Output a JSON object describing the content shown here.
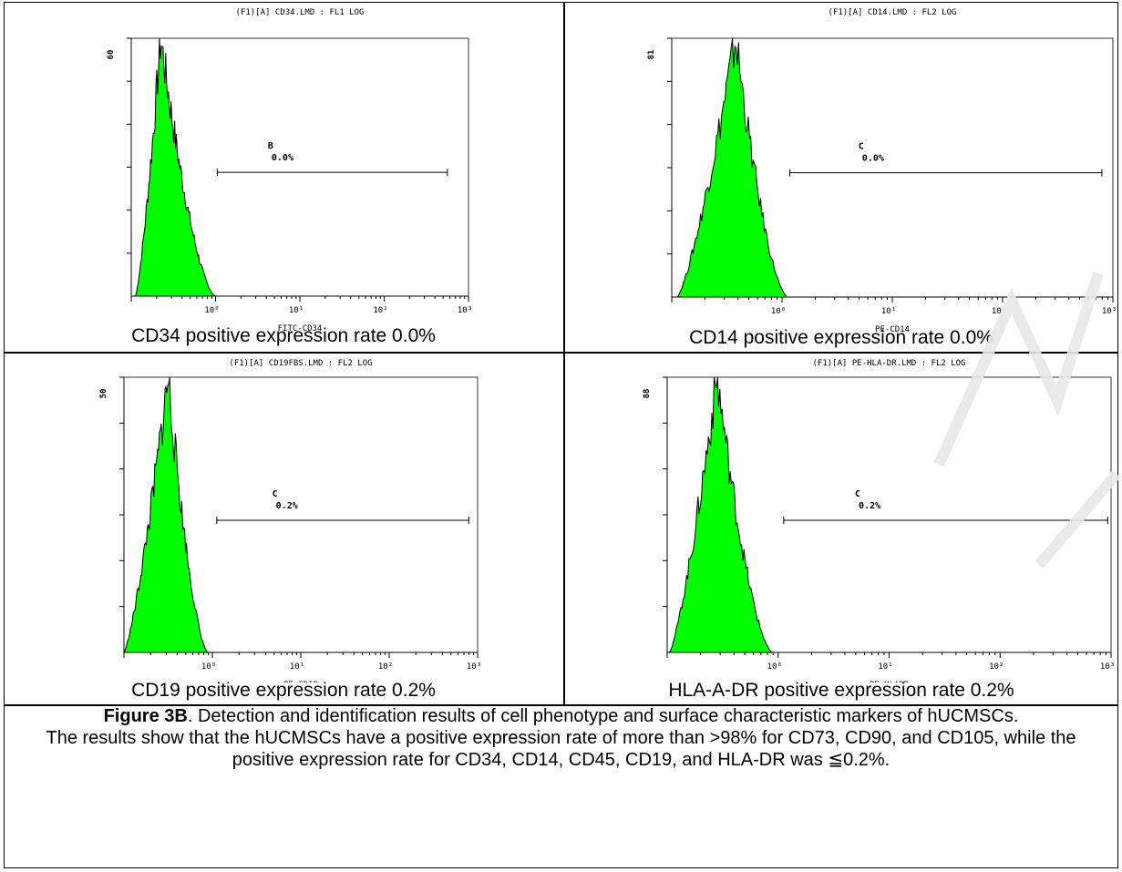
{
  "chart_data": [
    {
      "type": "histogram",
      "title": "(F1)[A] CD34.LMD : FL1 LOG",
      "xlabel": "FITC-CD34",
      "x_scale": "log",
      "x_ticks": [
        "10⁰",
        "10¹",
        "10²",
        "10³"
      ],
      "y_max_label": "60",
      "gate_label": "B",
      "gate_percent": "0.0%",
      "gate_range_decades": [
        0.02,
        2.75
      ],
      "peak_decade": -0.65,
      "distribution_decades": [
        -0.95,
        0.0
      ],
      "caption": "CD34 positive expression rate 0.0%",
      "fill_color": "#00ff00"
    },
    {
      "type": "histogram",
      "title": "(F1)[A] CD14.LMD : FL2 LOG",
      "xlabel": "PE-CD14",
      "x_scale": "log",
      "x_ticks": [
        "10⁰",
        "10¹",
        "10²",
        "10³"
      ],
      "y_max_label": "81",
      "gate_label": "C",
      "gate_percent": "0.0%",
      "gate_range_decades": [
        0.07,
        2.9
      ],
      "peak_decade": -0.42,
      "distribution_decades": [
        -0.95,
        0.05
      ],
      "caption": "CD14 positive expression rate 0.0%",
      "fill_color": "#00ff00"
    },
    {
      "type": "histogram",
      "title": "(F1)[A] CD19FBS.LMD : FL2 LOG",
      "xlabel": "PE-CD19",
      "x_scale": "log",
      "x_ticks": [
        "10⁰",
        "10¹",
        "10²",
        "10³"
      ],
      "y_max_label": "50",
      "gate_label": "C",
      "gate_percent": "0.2%",
      "gate_range_decades": [
        0.05,
        2.9
      ],
      "peak_decade": -0.5,
      "distribution_decades": [
        -1.0,
        -0.05
      ],
      "caption": "CD19 positive expression rate 0.2%",
      "fill_color": "#00ff00"
    },
    {
      "type": "histogram",
      "title": "(F1)[A] PE-HLA-DR.LMD : FL2 LOG",
      "xlabel": "PE-HLADR",
      "x_scale": "log",
      "x_ticks": [
        "10⁰",
        "10¹",
        "10²",
        "10³"
      ],
      "y_max_label": "88",
      "gate_label": "C",
      "gate_percent": "0.2%",
      "gate_range_decades": [
        0.05,
        2.97
      ],
      "peak_decade": -0.55,
      "distribution_decades": [
        -0.98,
        -0.05
      ],
      "caption": "HLA-A-DR positive expression rate 0.2%",
      "fill_color": "#00ff00"
    }
  ],
  "figure_caption": {
    "label": "Figure 3B",
    "line1": ". Detection and identification results of cell phenotype and surface characteristic markers of hUCMSCs.",
    "line2": "The results show that the hUCMSCs have a positive expression rate of more than >98% for CD73, CD90, and CD105, while the positive expression rate for CD34, CD14, CD45, CD19, and HLA-DR was ≦0.2%."
  }
}
